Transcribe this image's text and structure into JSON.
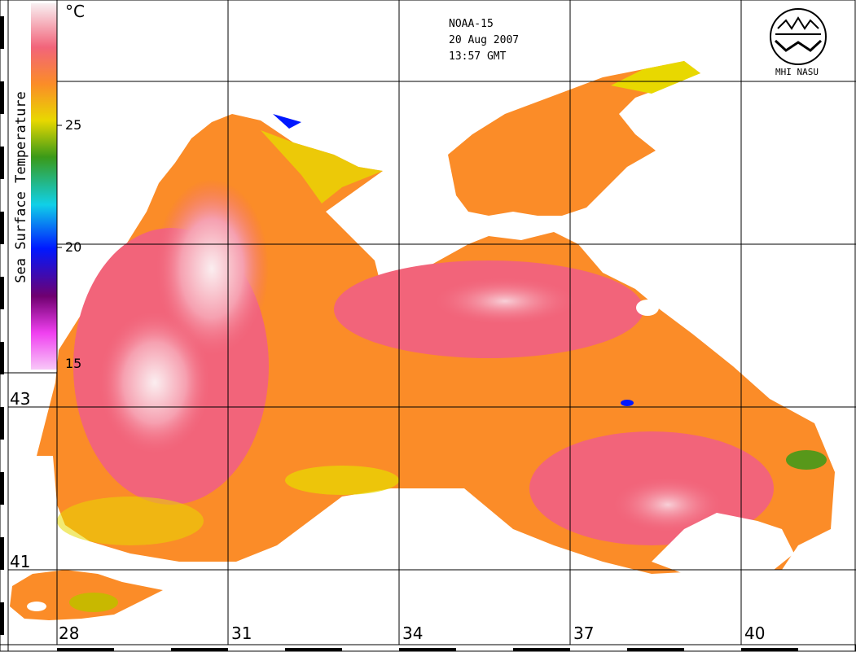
{
  "header": {
    "satellite": "NOAA-15",
    "date": "20 Aug 2007",
    "time": "13:57 GMT"
  },
  "logo": {
    "text": "MHI NASU",
    "icon": "institute-emblem-icon"
  },
  "colorbar": {
    "title": "Sea Surface Temperature",
    "unit": "°C",
    "ticks": [
      "25",
      "20",
      "15"
    ]
  },
  "grid": {
    "longitudes": [
      "28",
      "31",
      "34",
      "37",
      "40"
    ],
    "latitudes": [
      "43",
      "41"
    ]
  },
  "colors": {
    "warm_max": "#f8f0f2",
    "hot": "#f2647a",
    "orange": "#fb8c28",
    "yellow": "#e8d800",
    "green": "#3a9a18",
    "cyan": "#10d0e8",
    "blue": "#0018ff",
    "purple": "#700070",
    "magenta": "#f040f0",
    "cold_min": "#f8c8f8"
  }
}
